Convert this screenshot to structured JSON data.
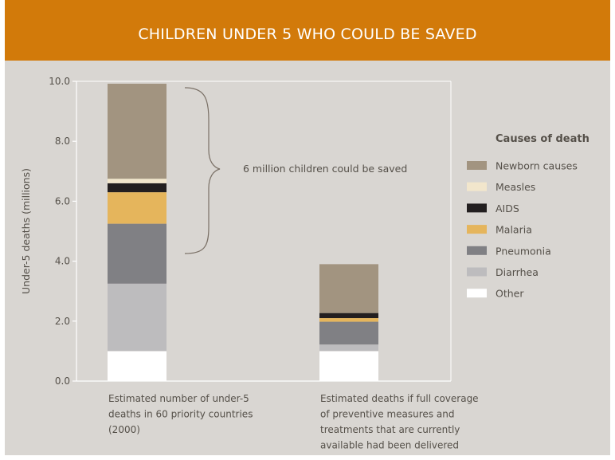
{
  "chart_data": {
    "type": "bar",
    "stacked": true,
    "title": "CHILDREN UNDER 5 WHO COULD BE SAVED",
    "ylabel": "Under-5 deaths (millions)",
    "ylim": [
      0,
      10
    ],
    "yticks": [
      "0.0",
      "2.0",
      "4.0",
      "6.0",
      "8.0",
      "10.0"
    ],
    "categories": [
      [
        "Estimated number of under-5",
        "deaths in 60 priority countries",
        "(2000)"
      ],
      [
        "Estimated deaths if full coverage",
        "of preventive measures and",
        "treatments that are currently",
        "available had been delivered"
      ]
    ],
    "legend_title": "Causes of death",
    "legend_position": "right",
    "grid": false,
    "series": [
      {
        "name": "Other",
        "color": "#ffffff",
        "values": [
          1.0,
          1.0
        ]
      },
      {
        "name": "Diarrhea",
        "color": "#bdbcbe",
        "values": [
          2.25,
          0.22
        ]
      },
      {
        "name": "Pneumonia",
        "color": "#808084",
        "values": [
          2.0,
          0.76
        ]
      },
      {
        "name": "Malaria",
        "color": "#e5b55c",
        "values": [
          1.05,
          0.12
        ]
      },
      {
        "name": "AIDS",
        "color": "#231f20",
        "values": [
          0.3,
          0.17
        ]
      },
      {
        "name": "Measles",
        "color": "#f2e6cc",
        "values": [
          0.15,
          0.0
        ]
      },
      {
        "name": "Newborn causes",
        "color": "#a29480",
        "values": [
          3.17,
          1.63
        ]
      }
    ],
    "annotation": "6 million children could be saved"
  }
}
